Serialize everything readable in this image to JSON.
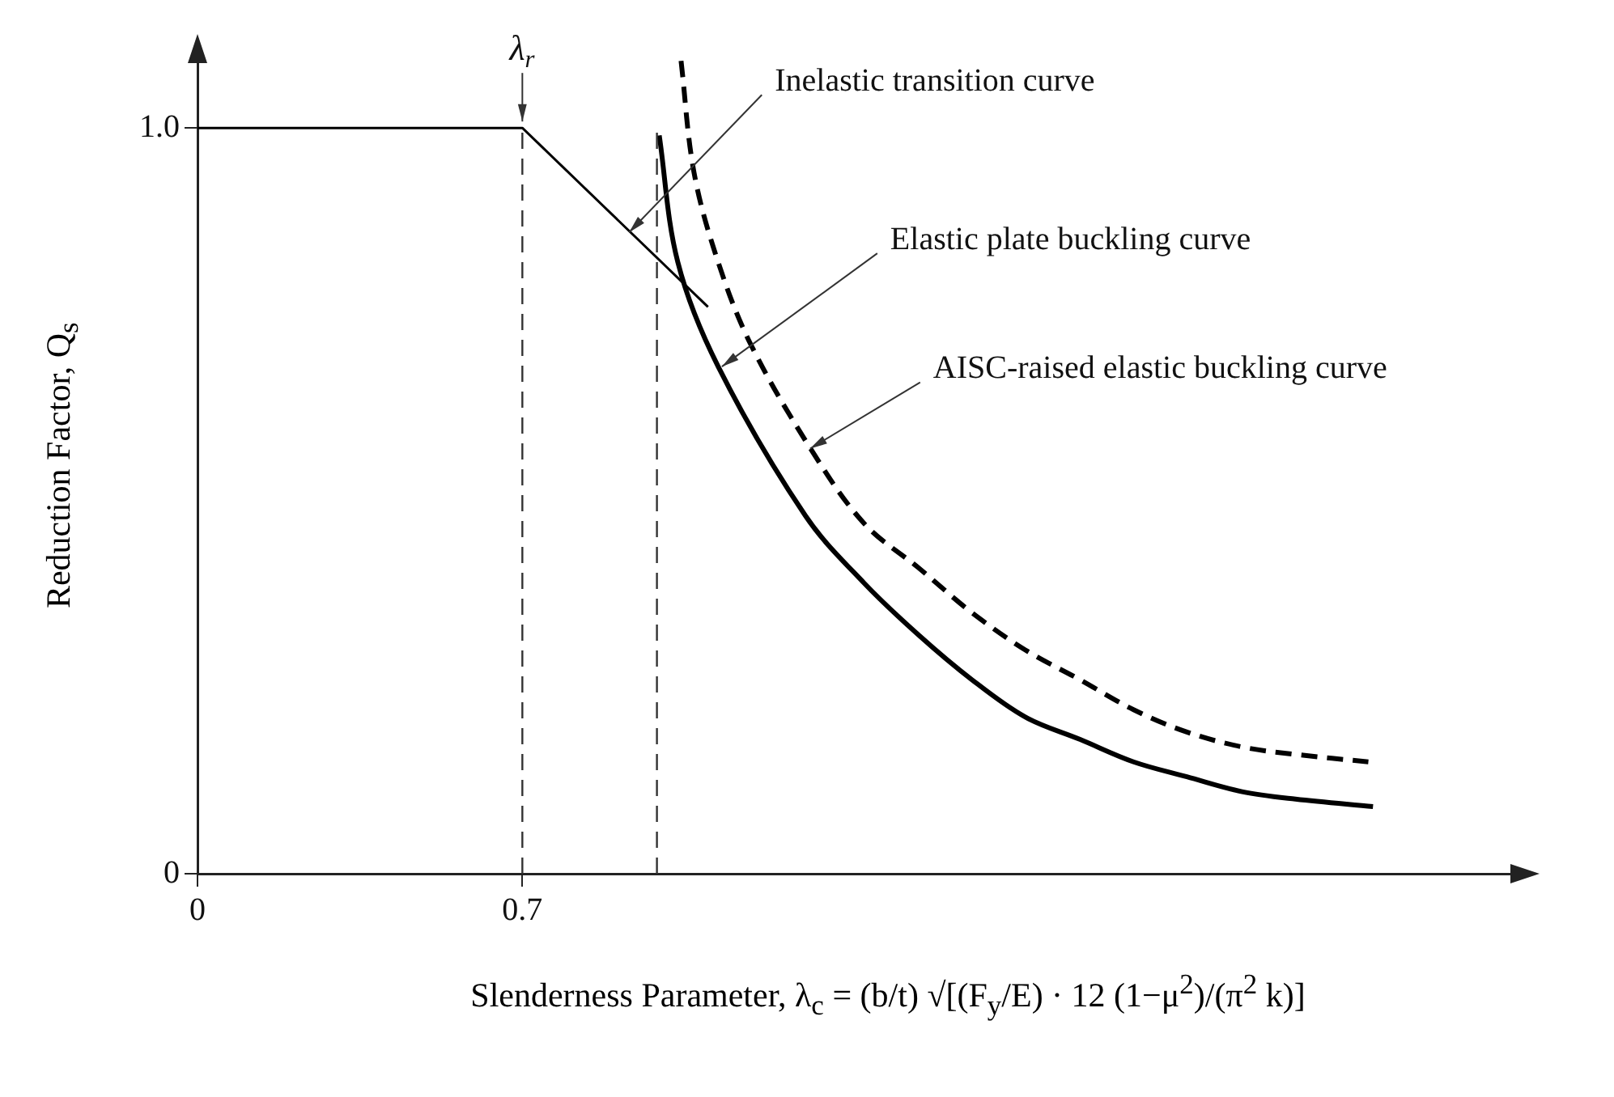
{
  "chart_data": {
    "type": "line",
    "xlabel": "Slenderness Parameter, λ$_{c}$ = (b/t) √[(F$_{y}$/E) · 12 (1−μ$^{2}$)/(π$^{2}$ k)]",
    "ylabel": "Reduction Factor, Q$_{s}$",
    "xlim": [
      0,
      2.85
    ],
    "ylim": [
      0,
      1.1
    ],
    "xticks": [
      0,
      0.7
    ],
    "yticks": [
      0,
      {
        "value": 1,
        "label": "1.0"
      }
    ],
    "grid": false,
    "legend": false,
    "marker": "none",
    "series": [
      {
        "color": "#000000",
        "line_style": "solid",
        "x": [
          0,
          0.7,
          1.1
        ],
        "values": [
          1,
          1,
          0.76
        ]
      },
      {
        "color": "#000000",
        "line_style": "solid",
        "x": [
          0.995,
          1.035,
          1.122,
          1.31,
          1.436,
          1.554,
          1.669,
          1.784,
          1.902,
          2.017,
          2.132,
          2.251,
          2.366,
          2.533
        ],
        "values": [
          0.99,
          0.82,
          0.68,
          0.48,
          0.39,
          0.32,
          0.26,
          0.21,
          0.18,
          0.15,
          0.13,
          0.11,
          0.1,
          0.09
        ]
      },
      {
        "color": "#000000",
        "line_style": "dashed",
        "x": [
          1.042,
          1.07,
          1.122,
          1.192,
          1.321,
          1.436,
          1.554,
          1.669,
          1.784,
          1.902,
          2.017,
          2.132,
          2.251,
          2.366,
          2.523
        ],
        "values": [
          1.09,
          0.94,
          0.82,
          0.71,
          0.57,
          0.47,
          0.41,
          0.35,
          0.3,
          0.26,
          0.22,
          0.19,
          0.17,
          0.16,
          0.15
        ]
      }
    ],
    "ref_lines": [
      {
        "axis": "x",
        "value": 0.7,
        "line_style": "dashed"
      },
      {
        "axis": "x",
        "value": 0.99,
        "line_style": "dashed"
      }
    ],
    "annotations": [
      {
        "text": "λ$_{r}$",
        "x": 0.7,
        "y": 1.0
      },
      {
        "text": "Inelastic transition curve",
        "x": 0.93,
        "y": 0.86
      },
      {
        "text": "Elastic plate buckling curve",
        "x": 1.13,
        "y": 0.68
      },
      {
        "text": "AISC-raised elastic buckling curve",
        "x": 1.32,
        "y": 0.57
      }
    ]
  }
}
